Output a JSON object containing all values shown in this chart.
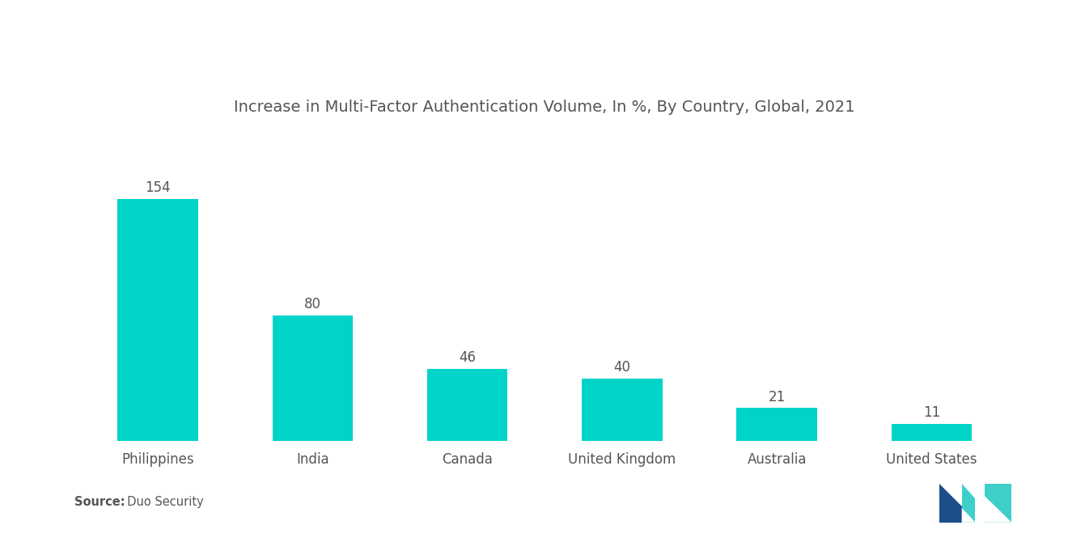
{
  "title": "Increase in Multi-Factor Authentication Volume, In %, By Country, Global, 2021",
  "categories": [
    "Philippines",
    "India",
    "Canada",
    "United Kingdom",
    "Australia",
    "United States"
  ],
  "values": [
    154,
    80,
    46,
    40,
    21,
    11
  ],
  "bar_color": "#00D4C8",
  "background_color": "#FFFFFF",
  "title_fontsize": 14,
  "label_fontsize": 12,
  "value_fontsize": 12,
  "source_bold": "Source:",
  "source_normal": "  Duo Security",
  "ylim": [
    0,
    195
  ],
  "bar_width": 0.52,
  "logo_teal": "#3ECFCB",
  "logo_navy": "#1E4D8C"
}
